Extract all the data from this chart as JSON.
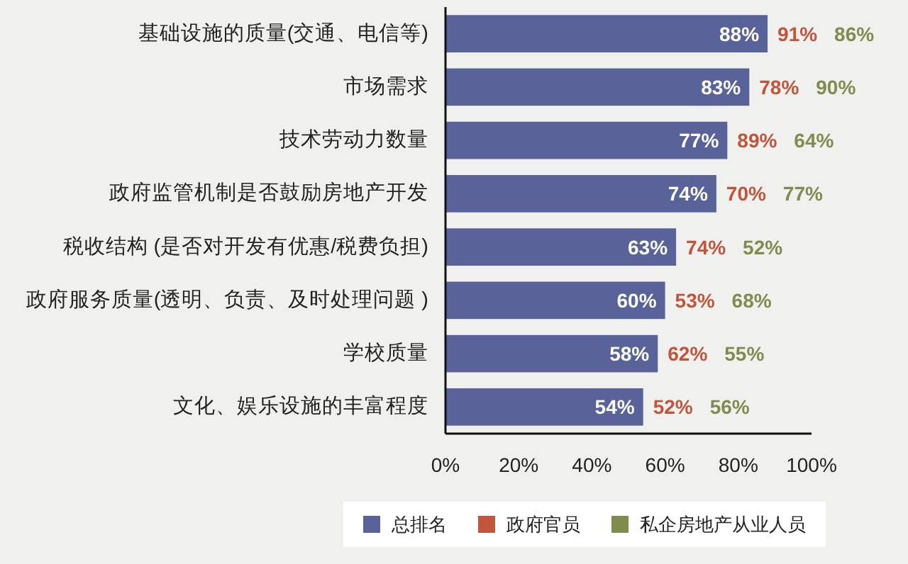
{
  "chart_data": {
    "type": "bar",
    "orientation": "horizontal",
    "categories": [
      "基础设施的质量(交通、电信等)",
      "市场需求",
      "技术劳动力数量",
      "政府监管机制是否鼓励房地产开发",
      "税收结构 (是否对开发有优惠/税费负担)",
      "政府服务质量(透明、负责、及时处理问题 )",
      "学校质量",
      "文化、娱乐设施的丰富程度"
    ],
    "series": [
      {
        "name": "总排名",
        "color": "#59639a",
        "values": [
          88,
          83,
          77,
          74,
          63,
          60,
          58,
          54
        ],
        "value_labels": [
          "88%",
          "83%",
          "77%",
          "74%",
          "63%",
          "60%",
          "58%",
          "54%"
        ]
      },
      {
        "name": "政府官员",
        "color": "#c0553a",
        "values": [
          null,
          null,
          null,
          null,
          null,
          null,
          null,
          null
        ],
        "value_labels": [
          "91%",
          "78%",
          "89%",
          "70%",
          "74%",
          "53%",
          "62%",
          "52%"
        ]
      },
      {
        "name": "私企房地产从业人员",
        "color": "#7f8c4e",
        "values": [
          null,
          null,
          null,
          null,
          null,
          null,
          null,
          null
        ],
        "value_labels": [
          "86%",
          "90%",
          "64%",
          "77%",
          "52%",
          "68%",
          "55%",
          "56%"
        ]
      }
    ],
    "xlim": [
      0,
      100
    ],
    "xticks": [
      {
        "value": 0,
        "label": "0%"
      },
      {
        "value": 20,
        "label": "20%"
      },
      {
        "value": 40,
        "label": "40%"
      },
      {
        "value": 60,
        "label": "60%"
      },
      {
        "value": 80,
        "label": "80%"
      },
      {
        "value": 100,
        "label": "100%"
      }
    ],
    "legend": "bottom",
    "grid": false
  }
}
